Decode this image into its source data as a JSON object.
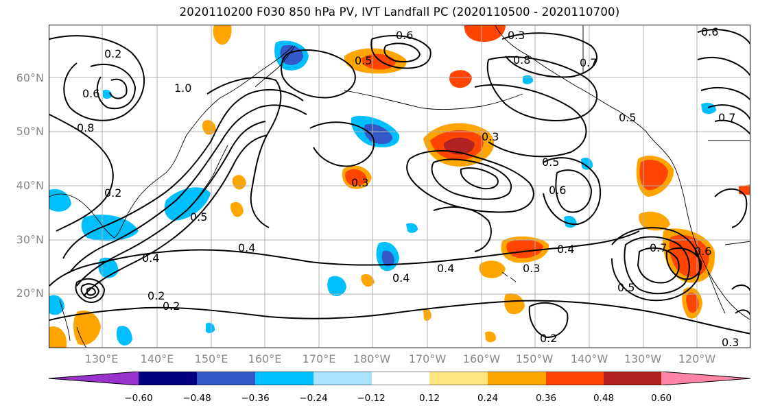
{
  "title": "2020110200 F030 850 hPa PV, IVT Landfall PC (2020110500 - 2020110700)",
  "lat_labels": [
    "60°N",
    "50°N",
    "40°N",
    "30°N",
    "20°N"
  ],
  "lon_labels": [
    "130°E",
    "140°E",
    "150°E",
    "160°E",
    "170°E",
    "180°W",
    "170°W",
    "160°W",
    "150°W",
    "140°W",
    "130°W",
    "120°W"
  ],
  "colorbar": {
    "ticks": [
      "−0.60",
      "−0.48",
      "−0.36",
      "−0.24",
      "−0.12",
      "0.12",
      "0.24",
      "0.36",
      "0.48",
      "0.60"
    ],
    "colors": [
      "#9932CC",
      "#000080",
      "#3558C8",
      "#00BFFF",
      "#ADE3FF",
      "#FFFFFF",
      "#FFE680",
      "#FFA500",
      "#FF4500",
      "#B22222",
      "#FF85A8"
    ]
  },
  "contour_labels": [
    "0.6",
    "0.3",
    "0.7",
    "0.5",
    "0.2",
    "0.8",
    "1.0",
    "0.4"
  ],
  "shading_colors": {
    "pos_weak": "#FFE680",
    "pos_mid": "#FFA500",
    "pos_strong": "#FF4500",
    "pos_max": "#B22222",
    "neg_weak": "#ADE3FF",
    "neg_mid": "#00BFFF",
    "neg_strong": "#3558C8"
  }
}
